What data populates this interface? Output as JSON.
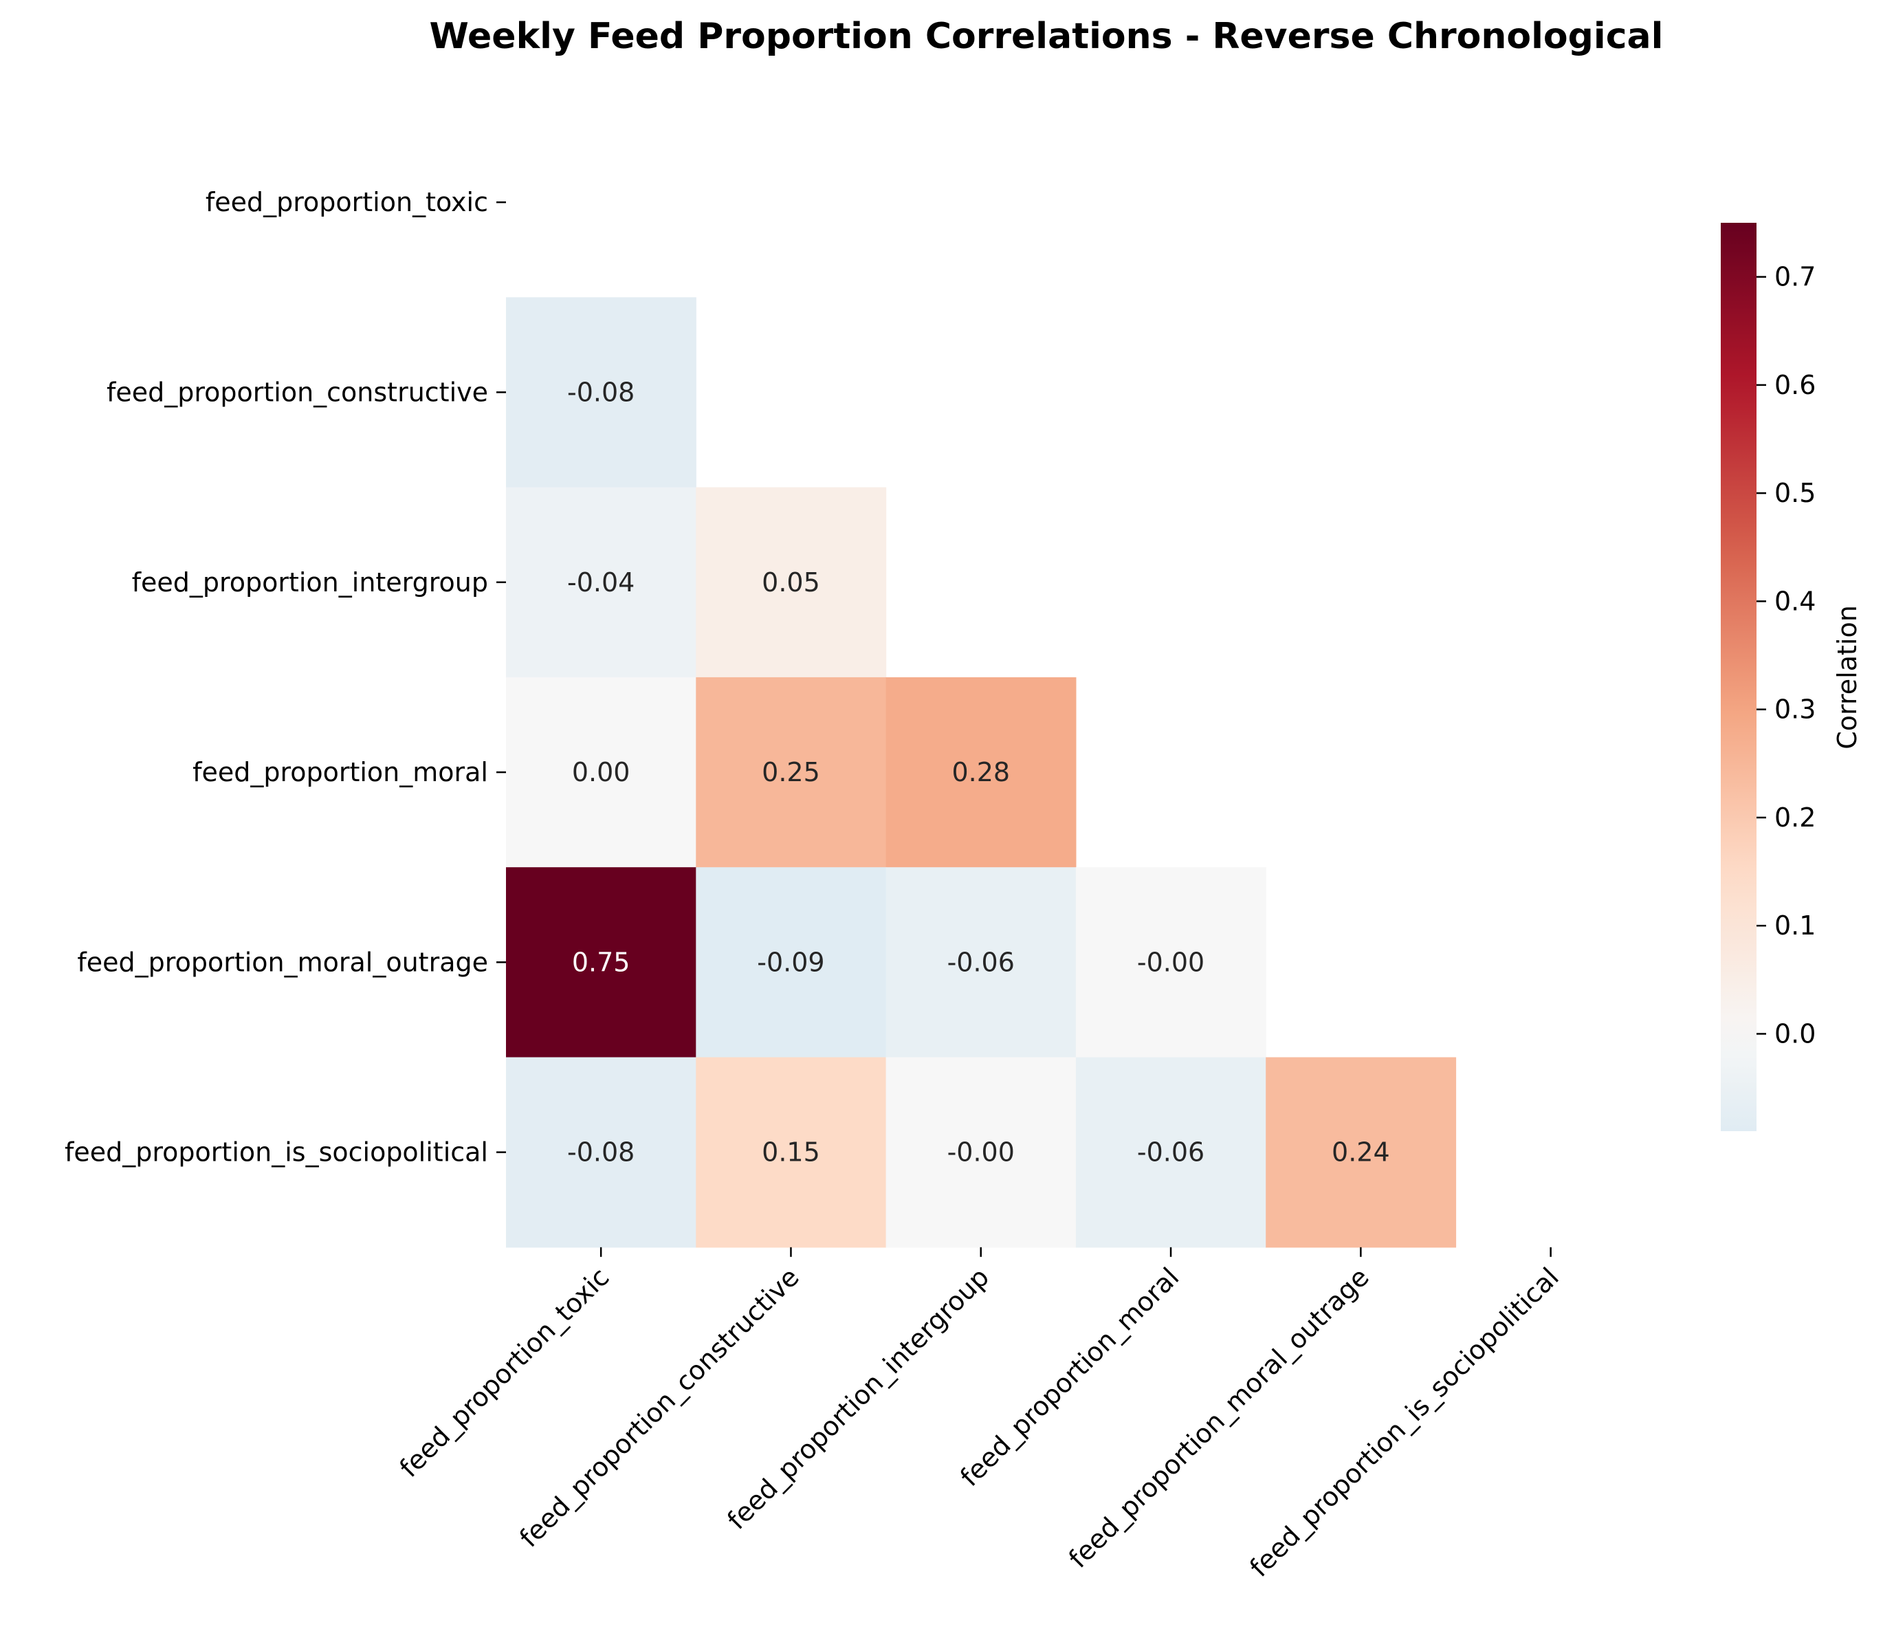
{
  "chart_data": {
    "type": "heatmap",
    "title": "Weekly Feed Proportion Correlations - Reverse Chronological",
    "variables": [
      "feed_proportion_toxic",
      "feed_proportion_constructive",
      "feed_proportion_intergroup",
      "feed_proportion_moral",
      "feed_proportion_moral_outrage",
      "feed_proportion_is_sociopolitical"
    ],
    "mask": "upper-triangle-including-diagonal",
    "values": [
      [
        null,
        null,
        null,
        null,
        null,
        null
      ],
      [
        -0.08,
        null,
        null,
        null,
        null,
        null
      ],
      [
        -0.04,
        0.05,
        null,
        null,
        null,
        null
      ],
      [
        0.0,
        0.25,
        0.28,
        null,
        null,
        null
      ],
      [
        0.75,
        -0.09,
        -0.06,
        -0.0,
        null,
        null
      ],
      [
        -0.08,
        0.15,
        -0.0,
        -0.06,
        0.24,
        null
      ]
    ],
    "labels": [
      [
        "",
        "",
        "",
        "",
        "",
        ""
      ],
      [
        "-0.08",
        "",
        "",
        "",
        "",
        ""
      ],
      [
        "-0.04",
        "0.05",
        "",
        "",
        "",
        ""
      ],
      [
        "0.00",
        "0.25",
        "0.28",
        "",
        "",
        ""
      ],
      [
        "0.75",
        "-0.09",
        "-0.06",
        "-0.00",
        "",
        ""
      ],
      [
        "-0.08",
        "0.15",
        "-0.00",
        "-0.06",
        "0.24",
        ""
      ]
    ],
    "colormap": "RdBu_r",
    "center": 0,
    "vmin": -0.09,
    "vmax": 0.75,
    "colorbar": {
      "label": "Correlation",
      "ticks": [
        0.0,
        0.1,
        0.2,
        0.3,
        0.4,
        0.5,
        0.6,
        0.7
      ],
      "tick_labels": [
        "0.0",
        "0.1",
        "0.2",
        "0.3",
        "0.4",
        "0.5",
        "0.6",
        "0.7"
      ],
      "placement": "right"
    },
    "grid": false
  }
}
